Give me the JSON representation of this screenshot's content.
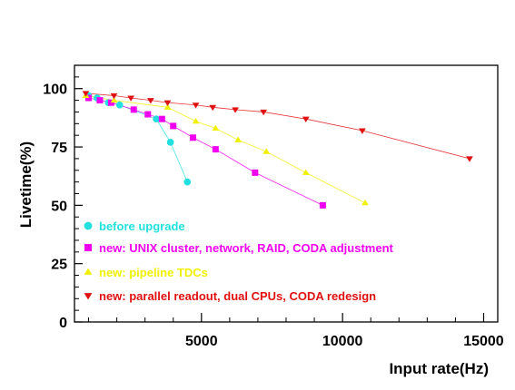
{
  "chart_data": {
    "type": "scatter",
    "title": "",
    "xlabel": "Input rate(Hz)",
    "ylabel": "Livetime(%)",
    "xlim": [
      500,
      15500
    ],
    "ylim": [
      0,
      110
    ],
    "xticks": [
      5000,
      10000,
      15000
    ],
    "yticks": [
      0,
      25,
      50,
      75,
      100
    ],
    "xtick_labels": [
      "5000",
      "10000",
      "15000"
    ],
    "ytick_labels": [
      "0",
      "25",
      "50",
      "75",
      "100"
    ],
    "grid": false,
    "legend_position": "bottom-left",
    "series": [
      {
        "name": "before upgrade",
        "marker": "circle",
        "color": "#22e0e0",
        "points": [
          [
            1000,
            97
          ],
          [
            1300,
            96
          ],
          [
            1700,
            94
          ],
          [
            2100,
            93
          ],
          [
            3400,
            87
          ],
          [
            3900,
            77
          ],
          [
            4500,
            60
          ]
        ]
      },
      {
        "name": "new: UNIX cluster, network, RAID, CODA adjustment",
        "marker": "square",
        "color": "#f000f0",
        "points": [
          [
            1000,
            96
          ],
          [
            1400,
            95
          ],
          [
            1800,
            94
          ],
          [
            2600,
            91
          ],
          [
            3100,
            89
          ],
          [
            3600,
            87
          ],
          [
            4000,
            84
          ],
          [
            4700,
            79
          ],
          [
            5500,
            74
          ],
          [
            6900,
            64
          ],
          [
            9300,
            50
          ]
        ]
      },
      {
        "name": "new: pipeline TDCs",
        "marker": "triangle-up",
        "color": "#f0f000",
        "points": [
          [
            900,
            97
          ],
          [
            1900,
            95
          ],
          [
            3800,
            92
          ],
          [
            4800,
            86
          ],
          [
            5500,
            83
          ],
          [
            6300,
            78
          ],
          [
            7300,
            73
          ],
          [
            8700,
            64
          ],
          [
            10800,
            51
          ]
        ]
      },
      {
        "name": "new: parallel readout, dual CPUs, CODA redesign",
        "marker": "triangle-down",
        "color": "#e01010",
        "points": [
          [
            900,
            98
          ],
          [
            1900,
            97
          ],
          [
            2500,
            96
          ],
          [
            3200,
            95
          ],
          [
            3800,
            94
          ],
          [
            4800,
            93
          ],
          [
            5400,
            92
          ],
          [
            6200,
            91
          ],
          [
            7200,
            90
          ],
          [
            8700,
            87
          ],
          [
            10700,
            82
          ],
          [
            14500,
            70
          ]
        ]
      }
    ]
  }
}
